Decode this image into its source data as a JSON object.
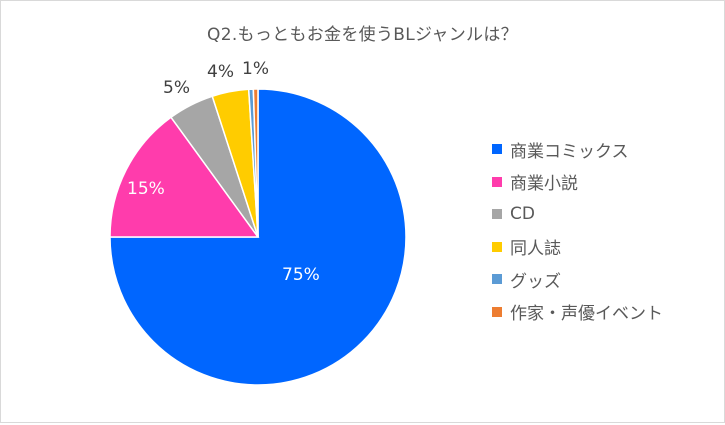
{
  "chart_data": {
    "type": "pie",
    "title": "Q2.もっともお金を使うBLジャンルは？",
    "categories": [
      "商業コミックス",
      "商業小説",
      "CD",
      "同人誌",
      "グッズ",
      "作家・声優イベント"
    ],
    "values": [
      75,
      15,
      5,
      4,
      0.5,
      0.5
    ],
    "data_labels": [
      "75%",
      "15%",
      "5%",
      "4%",
      "",
      "1%"
    ],
    "colors": [
      "#0066ff",
      "#ff3cac",
      "#a6a6a6",
      "#ffcc00",
      "#5b9bd5",
      "#ed7d31"
    ],
    "legend_position": "right",
    "start_angle": "12 o'clock",
    "direction": "clockwise"
  },
  "labels": {
    "l0": "75%",
    "l1": "15%",
    "l2": "5%",
    "l3": "4%",
    "l5": "1%"
  },
  "legend": {
    "items": [
      {
        "label": "商業コミックス",
        "color": "#0066ff"
      },
      {
        "label": "商業小説",
        "color": "#ff3cac"
      },
      {
        "label": "CD",
        "color": "#a6a6a6"
      },
      {
        "label": "同人誌",
        "color": "#ffcc00"
      },
      {
        "label": "グッズ",
        "color": "#5b9bd5"
      },
      {
        "label": "作家・声優イベント",
        "color": "#ed7d31"
      }
    ]
  }
}
